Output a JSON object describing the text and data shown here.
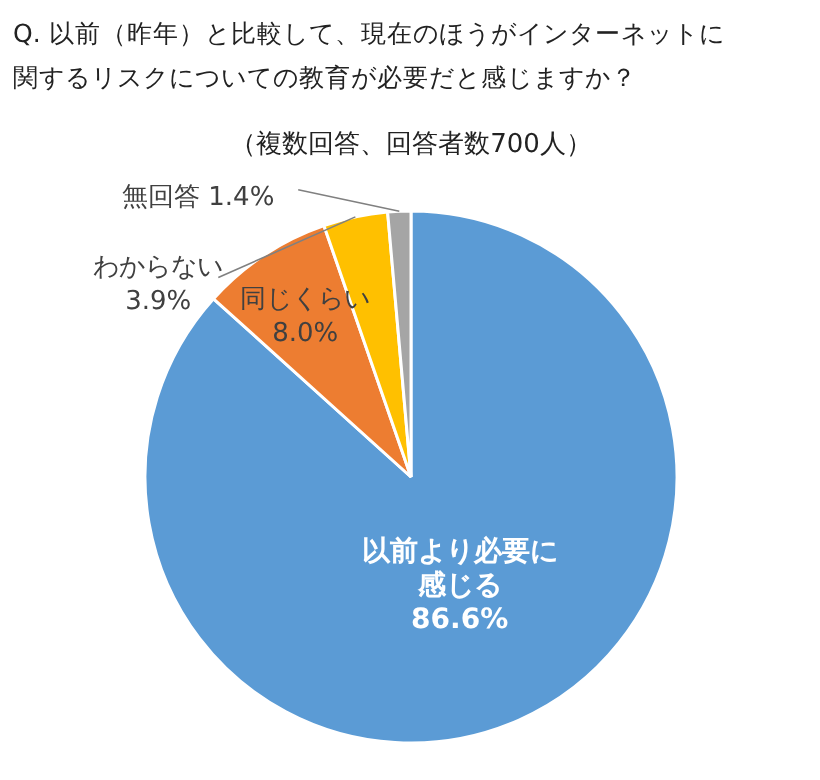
{
  "chart_data": {
    "type": "pie",
    "title": "Q. 以前（昨年）と比較して、現在のほうがインターネットに関するリスクについての教育が必要だと感じますか？",
    "subtitle": "（複数回答、回答者数700人）",
    "categories": [
      "以前より必要に感じる",
      "同じくらい",
      "わからない",
      "無回答"
    ],
    "values": [
      86.6,
      8.0,
      3.9,
      1.4
    ],
    "colors": [
      "#5b9bd5",
      "#ed7d31",
      "#ffc000",
      "#a5a5a5"
    ],
    "value_labels": [
      "86.6%",
      "8.0%",
      "3.9%",
      "1.4%"
    ]
  }
}
